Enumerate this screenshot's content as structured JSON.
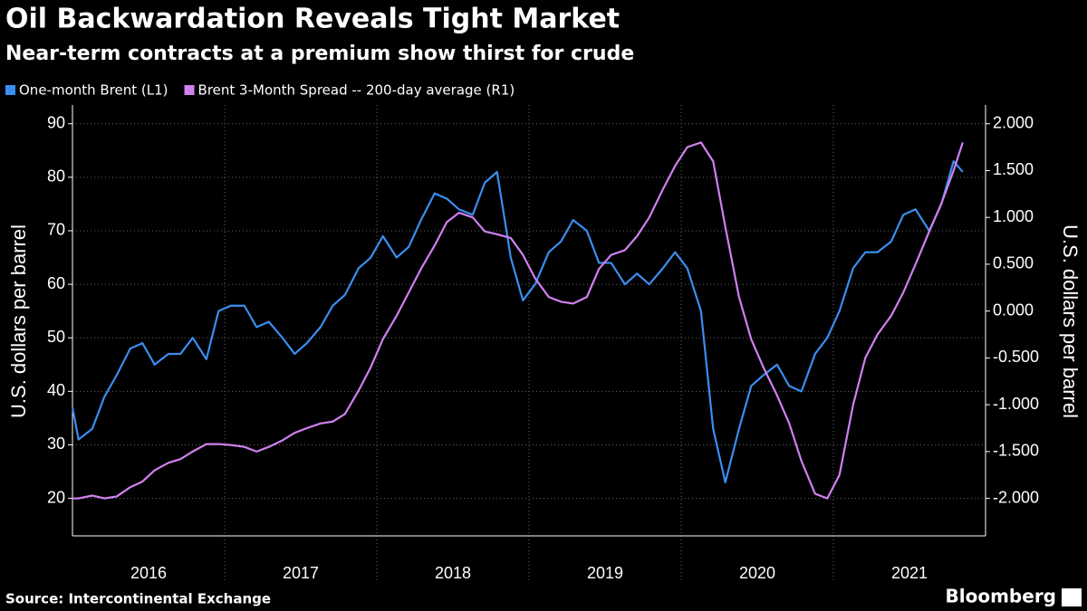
{
  "chart_data": {
    "type": "line",
    "title": "Oil Backwardation Reveals Tight Market",
    "subtitle": "Near-term contracts at a premium show thirst for crude",
    "ylabel": "U.S. dollars per barrel",
    "y2label": "U.S. dollars per barrel",
    "source": "Source: Intercontinental Exchange",
    "brand": "Bloomberg",
    "x": [
      2016.0,
      2016.04,
      2016.13,
      2016.21,
      2016.29,
      2016.38,
      2016.46,
      2016.54,
      2016.63,
      2016.71,
      2016.79,
      2016.88,
      2016.96,
      2017.04,
      2017.13,
      2017.21,
      2017.29,
      2017.38,
      2017.46,
      2017.54,
      2017.63,
      2017.71,
      2017.79,
      2017.88,
      2017.96,
      2018.04,
      2018.13,
      2018.21,
      2018.29,
      2018.38,
      2018.46,
      2018.54,
      2018.63,
      2018.71,
      2018.79,
      2018.88,
      2018.96,
      2019.04,
      2019.13,
      2019.21,
      2019.29,
      2019.38,
      2019.46,
      2019.54,
      2019.63,
      2019.71,
      2019.79,
      2019.88,
      2019.96,
      2020.04,
      2020.13,
      2020.21,
      2020.29,
      2020.38,
      2020.46,
      2020.54,
      2020.63,
      2020.71,
      2020.79,
      2020.88,
      2020.96,
      2021.04,
      2021.13,
      2021.21,
      2021.29,
      2021.38,
      2021.46,
      2021.54,
      2021.63,
      2021.71,
      2021.79,
      2021.85
    ],
    "series": [
      {
        "name": "One-month Brent  (L1)",
        "color": "#3a8ef0",
        "axis": "y",
        "values": [
          37,
          31,
          33,
          39,
          43,
          48,
          49,
          45,
          47,
          47,
          50,
          46,
          55,
          56,
          56,
          52,
          53,
          50,
          47,
          49,
          52,
          56,
          58,
          63,
          65,
          69,
          65,
          67,
          72,
          77,
          76,
          74,
          73,
          79,
          81,
          65,
          57,
          60,
          66,
          68,
          72,
          70,
          64,
          64,
          60,
          62,
          60,
          63,
          66,
          63,
          55,
          33,
          23,
          33,
          41,
          43,
          45,
          41,
          40,
          47,
          50,
          55,
          63,
          66,
          66,
          68,
          73,
          74,
          70,
          75,
          83,
          81
        ]
      },
      {
        "name": "Brent 3-Month Spread -- 200-day average (R1)",
        "color": "#d080f0",
        "axis": "y2",
        "values": [
          -2.0,
          -2.0,
          -1.97,
          -2.0,
          -1.98,
          -1.88,
          -1.82,
          -1.7,
          -1.62,
          -1.58,
          -1.5,
          -1.42,
          -1.42,
          -1.43,
          -1.45,
          -1.5,
          -1.45,
          -1.38,
          -1.3,
          -1.25,
          -1.2,
          -1.18,
          -1.1,
          -0.85,
          -0.6,
          -0.3,
          -0.05,
          0.2,
          0.45,
          0.7,
          0.95,
          1.05,
          1.0,
          0.85,
          0.82,
          0.78,
          0.6,
          0.35,
          0.15,
          0.1,
          0.08,
          0.15,
          0.45,
          0.6,
          0.65,
          0.8,
          1.0,
          1.3,
          1.55,
          1.75,
          1.8,
          1.6,
          0.9,
          0.15,
          -0.3,
          -0.6,
          -0.9,
          -1.2,
          -1.6,
          -1.95,
          -2.0,
          -1.75,
          -1.0,
          -0.5,
          -0.25,
          -0.05,
          0.2,
          0.5,
          0.85,
          1.15,
          1.5,
          1.8
        ]
      }
    ],
    "xlim": [
      2016,
      2022
    ],
    "xticks": [
      {
        "value": 2016.5,
        "label": "2016"
      },
      {
        "value": 2017.5,
        "label": "2017"
      },
      {
        "value": 2018.5,
        "label": "2018"
      },
      {
        "value": 2019.5,
        "label": "2019"
      },
      {
        "value": 2020.5,
        "label": "2020"
      },
      {
        "value": 2021.5,
        "label": "2021"
      }
    ],
    "xgrid": [
      2017,
      2018,
      2019,
      2020,
      2021
    ],
    "ylim": [
      13,
      93.5
    ],
    "yticks": [
      20,
      30,
      40,
      50,
      60,
      70,
      80,
      90
    ],
    "y2lim": [
      -2.4,
      2.2
    ],
    "y2ticks": [
      {
        "value": -2,
        "label": "-2.000"
      },
      {
        "value": -1.5,
        "label": "-1.500"
      },
      {
        "value": -1,
        "label": "-1.000"
      },
      {
        "value": -0.5,
        "label": "-0.500"
      },
      {
        "value": 0,
        "label": "0.000"
      },
      {
        "value": 0.5,
        "label": "0.500"
      },
      {
        "value": 1,
        "label": "1.000"
      },
      {
        "value": 1.5,
        "label": "1.500"
      },
      {
        "value": 2,
        "label": "2.000"
      }
    ],
    "grid": true
  }
}
